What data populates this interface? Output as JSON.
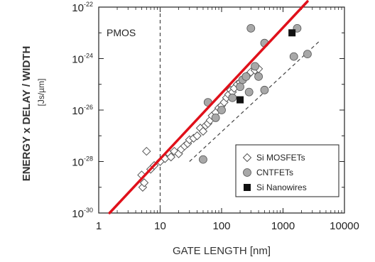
{
  "chart_data": {
    "type": "scatter",
    "title": "",
    "annotation": "PMOS",
    "xlabel": "GATE  LENGTH  [nm]",
    "ylabel": "ENERGY x DELAY / WIDTH",
    "ylabel_unit": "[Js/µm]",
    "xscale": "log",
    "yscale": "log",
    "xlim": [
      1,
      10000
    ],
    "ylim": [
      1e-30,
      1e-22
    ],
    "x_ticks": [
      {
        "value": 1,
        "label": "1"
      },
      {
        "value": 10,
        "label": "10"
      },
      {
        "value": 100,
        "label": "100"
      },
      {
        "value": 1000,
        "label": "1000"
      },
      {
        "value": 10000,
        "label": "10000"
      }
    ],
    "y_ticks": [
      {
        "value": 1e-30,
        "base": "10",
        "exp": "-30"
      },
      {
        "value": 1e-28,
        "base": "10",
        "exp": "-28"
      },
      {
        "value": 1e-26,
        "base": "10",
        "exp": "-26"
      },
      {
        "value": 1e-24,
        "base": "10",
        "exp": "-24"
      },
      {
        "value": 1e-22,
        "base": "10",
        "exp": "-22"
      }
    ],
    "grid": false,
    "legend_position": "bottom-right",
    "colors": {
      "mosfet_edge": "#555555",
      "cntfet_fill": "#a8a8a8",
      "nanowire_fill": "#111111",
      "trend_line": "#e0101a",
      "dashed_line": "#444444"
    },
    "series": [
      {
        "name": "Si MOSFETs",
        "marker": "diamond",
        "points": [
          [
            5,
            3e-29
          ],
          [
            5.2,
            1e-29
          ],
          [
            5.5,
            1.5e-29
          ],
          [
            6,
            2.5e-28
          ],
          [
            7,
            5e-29
          ],
          [
            8,
            7e-29
          ],
          [
            10,
            1e-28
          ],
          [
            12,
            1.3e-28
          ],
          [
            14,
            2e-28
          ],
          [
            15,
            1.5e-28
          ],
          [
            17,
            2.5e-28
          ],
          [
            20,
            2e-28
          ],
          [
            22,
            3e-28
          ],
          [
            25,
            4e-28
          ],
          [
            28,
            5e-28
          ],
          [
            30,
            7e-28
          ],
          [
            35,
            8e-28
          ],
          [
            40,
            1e-27
          ],
          [
            45,
            2e-27
          ],
          [
            50,
            1.5e-27
          ],
          [
            55,
            2.5e-27
          ],
          [
            60,
            3e-27
          ],
          [
            65,
            4e-27
          ],
          [
            70,
            6e-27
          ],
          [
            80,
            8e-27
          ],
          [
            90,
            1.2e-26
          ],
          [
            100,
            1.5e-26
          ],
          [
            110,
            2e-26
          ],
          [
            120,
            3e-26
          ],
          [
            130,
            4e-26
          ],
          [
            140,
            6e-26
          ],
          [
            150,
            5e-26
          ],
          [
            160,
            7e-26
          ],
          [
            180,
            1e-25
          ],
          [
            200,
            1.2e-25
          ],
          [
            220,
            1.5e-25
          ],
          [
            250,
            2e-25
          ],
          [
            280,
            2.5e-25
          ],
          [
            300,
            3e-25
          ],
          [
            350,
            3.5e-25
          ],
          [
            400,
            4e-25
          ]
        ]
      },
      {
        "name": "CNTFETs",
        "marker": "circle",
        "points": [
          [
            50,
            1.2e-28
          ],
          [
            60,
            2e-26
          ],
          [
            80,
            5e-27
          ],
          [
            100,
            1e-26
          ],
          [
            150,
            3e-26
          ],
          [
            200,
            8e-26
          ],
          [
            220,
            1.5e-25
          ],
          [
            250,
            2e-25
          ],
          [
            280,
            5e-26
          ],
          [
            300,
            1.5e-23
          ],
          [
            350,
            5e-25
          ],
          [
            400,
            2e-25
          ],
          [
            500,
            6e-26
          ],
          [
            500,
            4e-24
          ],
          [
            1500,
            1.2e-24
          ],
          [
            1700,
            1.5e-23
          ],
          [
            2500,
            1.5e-24
          ]
        ]
      },
      {
        "name": "Si Nanowires",
        "marker": "square",
        "points": [
          [
            200,
            2.5e-26
          ],
          [
            1400,
            1e-23
          ]
        ]
      }
    ],
    "reference_lines": [
      {
        "style": "vertical-dashed",
        "x": 10
      },
      {
        "style": "dashed",
        "from": [
          30,
          1e-28
        ],
        "to": [
          4000,
          5e-24
        ]
      },
      {
        "style": "solid-red",
        "from": [
          1.5,
          1e-30
        ],
        "to": [
          2500,
          1e-22
        ]
      }
    ]
  }
}
